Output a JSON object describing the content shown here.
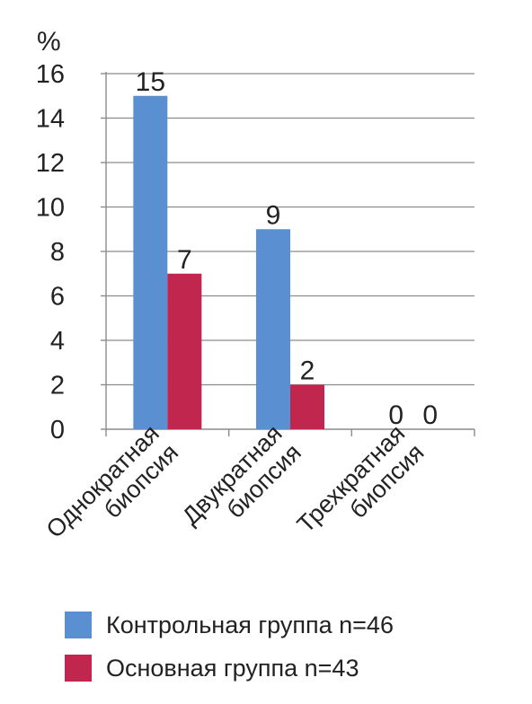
{
  "chart_data": {
    "type": "bar",
    "y_unit": "%",
    "categories": [
      [
        "Однократная",
        "биопсия"
      ],
      [
        "Двукратная",
        "биопсия"
      ],
      [
        "Трехкратная",
        "биопсия"
      ]
    ],
    "series": [
      {
        "name": "Контрольная группа n=46",
        "color": "#5a8fd2",
        "values": [
          15,
          9,
          0
        ]
      },
      {
        "name": "Основная группа n=43",
        "color": "#c1264f",
        "values": [
          7,
          2,
          0
        ]
      }
    ],
    "yticks": [
      0,
      2,
      4,
      6,
      8,
      10,
      12,
      14,
      16
    ],
    "ylim": [
      0,
      16
    ],
    "grid": true,
    "data_labels": true,
    "legend_position": "bottom-left"
  }
}
